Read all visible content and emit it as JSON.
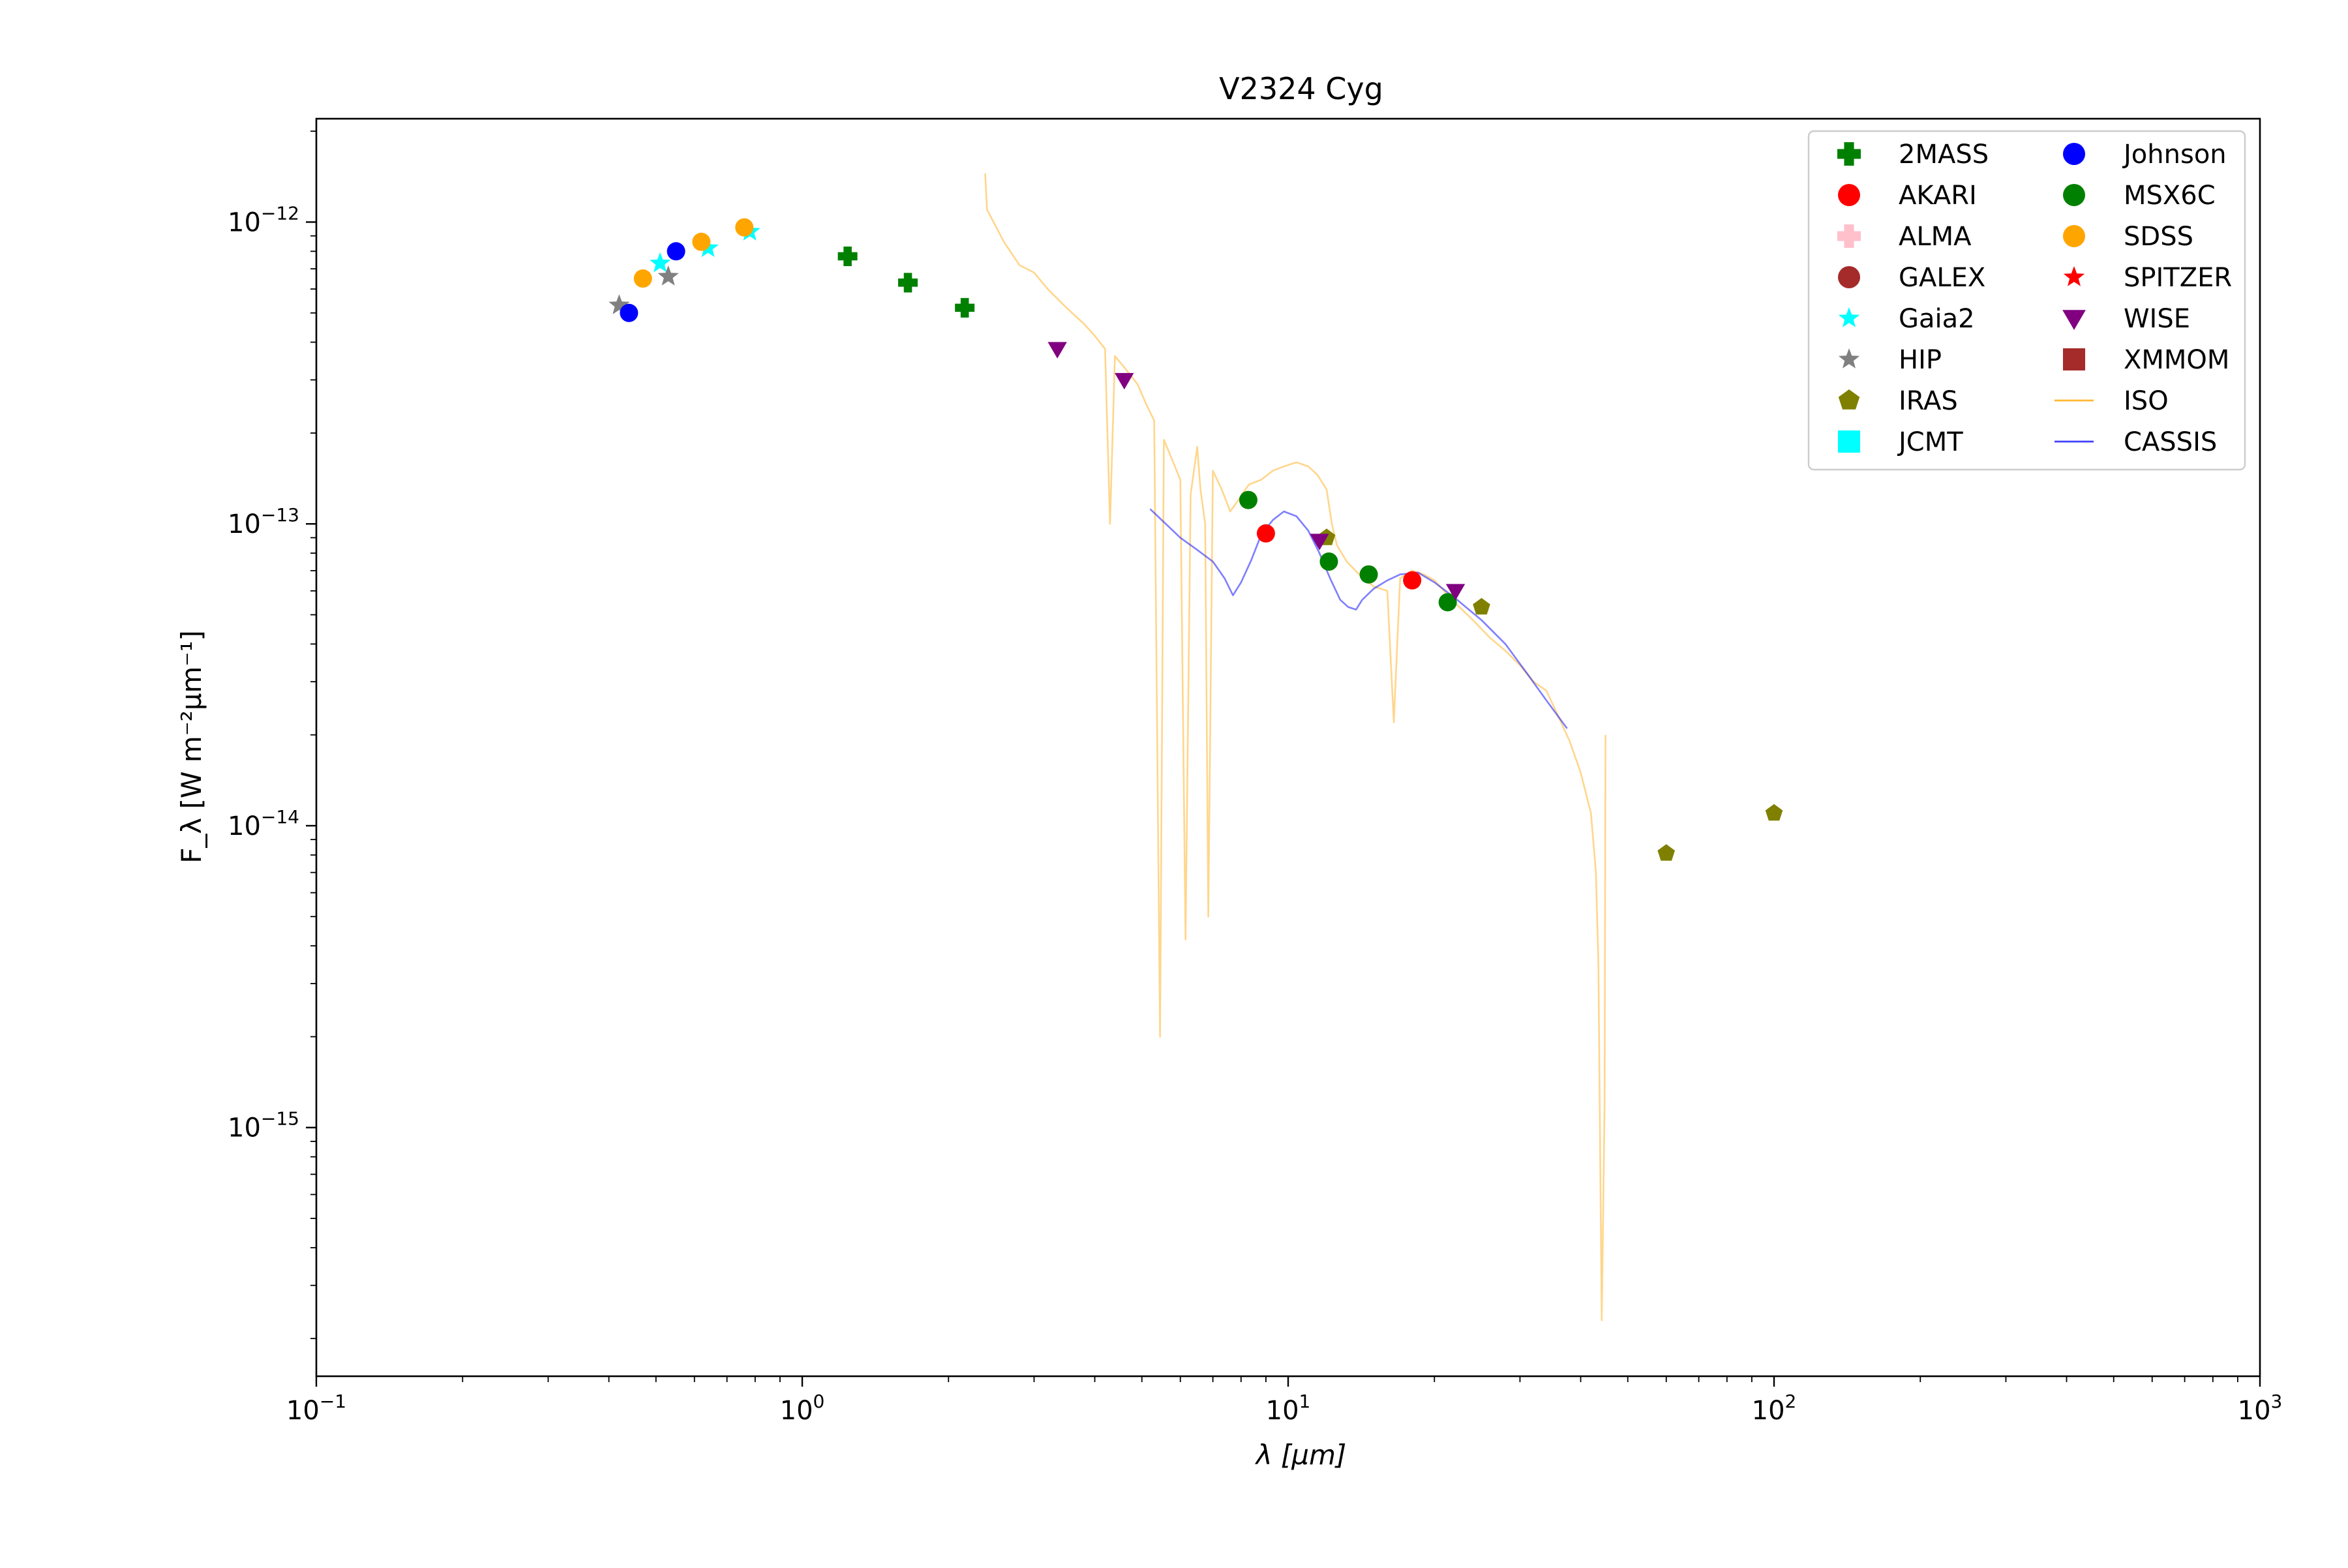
{
  "chart_data": {
    "type": "scatter",
    "title": "V2324 Cyg",
    "xlabel": "λ [μm]",
    "ylabel": "F_λ [W m⁻²μm⁻¹]",
    "xscale": "log",
    "yscale": "log",
    "xlim": [
      0.1,
      1000
    ],
    "ylim": [
      1.5e-16,
      2.2e-12
    ],
    "grid": false,
    "legend_position": "top-right",
    "x_ticks": [
      {
        "value": 0.1,
        "base": "10",
        "exp": "−1"
      },
      {
        "value": 1,
        "base": "10",
        "exp": "0"
      },
      {
        "value": 10,
        "base": "10",
        "exp": "1"
      },
      {
        "value": 100,
        "base": "10",
        "exp": "2"
      },
      {
        "value": 1000,
        "base": "10",
        "exp": "3"
      }
    ],
    "y_ticks": [
      {
        "value": 1e-15,
        "base": "10",
        "exp": "−15"
      },
      {
        "value": 1e-14,
        "base": "10",
        "exp": "−14"
      },
      {
        "value": 1e-13,
        "base": "10",
        "exp": "−13"
      },
      {
        "value": 1e-12,
        "base": "10",
        "exp": "−12"
      }
    ],
    "series": [
      {
        "name": "2MASS",
        "marker": "plus",
        "color": "#008000",
        "points": [
          [
            1.24,
            7.7e-13
          ],
          [
            1.65,
            6.3e-13
          ],
          [
            2.16,
            5.2e-13
          ]
        ]
      },
      {
        "name": "AKARI",
        "marker": "circle",
        "color": "#ff0000",
        "points": [
          [
            9.0,
            9.3e-14
          ],
          [
            18.0,
            6.5e-14
          ]
        ]
      },
      {
        "name": "ALMA",
        "marker": "plus",
        "color": "#ffc0cb",
        "points": []
      },
      {
        "name": "GALEX",
        "marker": "circle",
        "color": "#a52a2a",
        "points": []
      },
      {
        "name": "Gaia2",
        "marker": "star",
        "color": "#00ffff",
        "points": [
          [
            0.51,
            7.3e-13
          ],
          [
            0.64,
            8.2e-13
          ],
          [
            0.78,
            9.3e-13
          ]
        ]
      },
      {
        "name": "HIP",
        "marker": "star",
        "color": "#808080",
        "points": [
          [
            0.42,
            5.3e-13
          ],
          [
            0.53,
            6.6e-13
          ]
        ]
      },
      {
        "name": "IRAS",
        "marker": "pentagon",
        "color": "#808000",
        "points": [
          [
            12,
            9e-14
          ],
          [
            25,
            5.3e-14
          ],
          [
            60,
            8.1e-15
          ],
          [
            100,
            1.1e-14
          ]
        ]
      },
      {
        "name": "JCMT",
        "marker": "square",
        "color": "#00ffff",
        "points": []
      },
      {
        "name": "Johnson",
        "marker": "circle",
        "color": "#0000ff",
        "points": [
          [
            0.44,
            5e-13
          ],
          [
            0.55,
            8e-13
          ]
        ]
      },
      {
        "name": "MSX6C",
        "marker": "circle",
        "color": "#008000",
        "points": [
          [
            8.28,
            1.2e-13
          ],
          [
            12.13,
            7.5e-14
          ],
          [
            14.65,
            6.8e-14
          ],
          [
            21.3,
            5.5e-14
          ]
        ]
      },
      {
        "name": "SDSS",
        "marker": "circle",
        "color": "#ffa500",
        "points": [
          [
            0.47,
            6.5e-13
          ],
          [
            0.62,
            8.6e-13
          ],
          [
            0.76,
            9.6e-13
          ]
        ]
      },
      {
        "name": "SPITZER",
        "marker": "star",
        "color": "#ff0000",
        "points": []
      },
      {
        "name": "WISE",
        "marker": "triangle-down",
        "color": "#800080",
        "points": [
          [
            3.35,
            3.8e-13
          ],
          [
            4.6,
            3e-13
          ],
          [
            11.6,
            8.8e-14
          ],
          [
            22.1,
            6e-14
          ]
        ]
      },
      {
        "name": "XMMOM",
        "marker": "square",
        "color": "#a52a2a",
        "points": []
      },
      {
        "name": "ISO",
        "marker": "line",
        "color": "#ffa500",
        "points": [
          [
            2.38,
            1.45e-12
          ],
          [
            2.4,
            1.1e-12
          ],
          [
            2.6,
            8.6e-13
          ],
          [
            2.8,
            7.2e-13
          ],
          [
            3.0,
            6.8e-13
          ],
          [
            3.2,
            6e-13
          ],
          [
            3.5,
            5.2e-13
          ],
          [
            3.8,
            4.6e-13
          ],
          [
            4.0,
            4.2e-13
          ],
          [
            4.2,
            3.8e-13
          ],
          [
            4.3,
            1e-13
          ],
          [
            4.4,
            3.6e-13
          ],
          [
            4.6,
            3.3e-13
          ],
          [
            4.9,
            2.9e-13
          ],
          [
            5.1,
            2.5e-13
          ],
          [
            5.3,
            2.2e-13
          ],
          [
            5.45,
            2e-15
          ],
          [
            5.55,
            1.9e-13
          ],
          [
            5.8,
            1.6e-13
          ],
          [
            6.0,
            1.4e-13
          ],
          [
            6.15,
            4.2e-15
          ],
          [
            6.3,
            1.25e-13
          ],
          [
            6.5,
            1.8e-13
          ],
          [
            6.6,
            1.3e-13
          ],
          [
            6.75,
            1e-13
          ],
          [
            6.85,
            5e-15
          ],
          [
            7.0,
            1.5e-13
          ],
          [
            7.3,
            1.3e-13
          ],
          [
            7.6,
            1.1e-13
          ],
          [
            7.9,
            1.2e-13
          ],
          [
            8.3,
            1.35e-13
          ],
          [
            8.8,
            1.4e-13
          ],
          [
            9.3,
            1.5e-13
          ],
          [
            9.8,
            1.55e-13
          ],
          [
            10.4,
            1.6e-13
          ],
          [
            11.0,
            1.55e-13
          ],
          [
            11.5,
            1.45e-13
          ],
          [
            12.0,
            1.3e-13
          ],
          [
            12.3,
            1e-13
          ],
          [
            12.6,
            8.5e-14
          ],
          [
            13.2,
            7.5e-14
          ],
          [
            14.0,
            6.8e-14
          ],
          [
            15.0,
            6.2e-14
          ],
          [
            16.0,
            6e-14
          ],
          [
            16.5,
            2.2e-14
          ],
          [
            17.0,
            6.6e-14
          ],
          [
            18.0,
            7e-14
          ],
          [
            19.0,
            6.8e-14
          ],
          [
            20.0,
            6.5e-14
          ],
          [
            22.0,
            5.5e-14
          ],
          [
            24.0,
            4.8e-14
          ],
          [
            26.0,
            4.2e-14
          ],
          [
            28.0,
            3.8e-14
          ],
          [
            30.0,
            3.4e-14
          ],
          [
            32.0,
            3e-14
          ],
          [
            34.0,
            2.8e-14
          ],
          [
            36.0,
            2.3e-14
          ],
          [
            38.0,
            1.9e-14
          ],
          [
            40.0,
            1.5e-14
          ],
          [
            42.0,
            1.1e-14
          ],
          [
            43.0,
            7e-15
          ],
          [
            43.5,
            3.5e-15
          ],
          [
            44.2,
            2.3e-16
          ],
          [
            44.8,
            1.2e-15
          ],
          [
            45.0,
            2e-14
          ]
        ]
      },
      {
        "name": "CASSIS",
        "marker": "line",
        "color": "#0000ff",
        "points": [
          [
            5.2,
            1.12e-13
          ],
          [
            5.6,
            1e-13
          ],
          [
            6.0,
            9e-14
          ],
          [
            6.5,
            8.2e-14
          ],
          [
            7.0,
            7.5e-14
          ],
          [
            7.4,
            6.6e-14
          ],
          [
            7.7,
            5.8e-14
          ],
          [
            8.0,
            6.4e-14
          ],
          [
            8.4,
            7.6e-14
          ],
          [
            8.8,
            9.2e-14
          ],
          [
            9.3,
            1.03e-13
          ],
          [
            9.8,
            1.1e-13
          ],
          [
            10.4,
            1.06e-13
          ],
          [
            11.0,
            9.5e-14
          ],
          [
            11.6,
            8e-14
          ],
          [
            12.2,
            6.6e-14
          ],
          [
            12.8,
            5.6e-14
          ],
          [
            13.3,
            5.3e-14
          ],
          [
            13.8,
            5.2e-14
          ],
          [
            14.2,
            5.6e-14
          ],
          [
            15.0,
            6.1e-14
          ],
          [
            16.0,
            6.5e-14
          ],
          [
            17.0,
            6.8e-14
          ],
          [
            18.5,
            6.9e-14
          ],
          [
            20.0,
            6.4e-14
          ],
          [
            22.0,
            5.7e-14
          ],
          [
            25.0,
            4.8e-14
          ],
          [
            28.0,
            4e-14
          ],
          [
            31.0,
            3.2e-14
          ],
          [
            34.0,
            2.6e-14
          ],
          [
            37.5,
            2.1e-14
          ]
        ]
      }
    ]
  }
}
